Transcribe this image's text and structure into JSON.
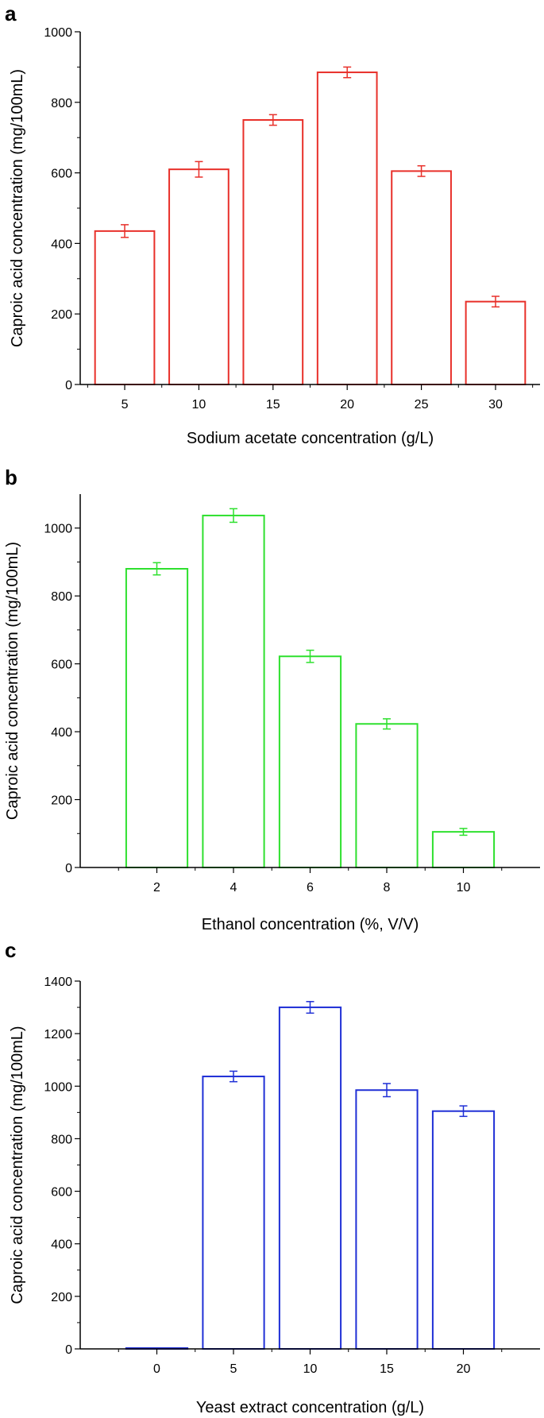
{
  "chart_data": [
    {
      "type": "bar",
      "panel_label": "a",
      "xlabel": "Sodium acetate concentration (g/L)",
      "ylabel": "Caproic acid concentration (mg/100mL)",
      "categories": [
        "5",
        "10",
        "15",
        "20",
        "25",
        "30"
      ],
      "values": [
        435,
        610,
        750,
        885,
        605,
        235
      ],
      "errors": [
        18,
        22,
        15,
        15,
        15,
        15
      ],
      "ylim": [
        0,
        1000
      ],
      "yticks": [
        0,
        200,
        400,
        600,
        800,
        1000
      ],
      "color": "#e8302a",
      "grid": false
    },
    {
      "type": "bar",
      "panel_label": "b",
      "xlabel": "Ethanol concentration (%, V/V)",
      "ylabel": "Caproic acid concentration (mg/100mL)",
      "categories": [
        "2",
        "4",
        "6",
        "8",
        "10"
      ],
      "values": [
        880,
        1037,
        622,
        423,
        105
      ],
      "errors": [
        18,
        20,
        18,
        15,
        10
      ],
      "ylim": [
        0,
        1100
      ],
      "yticks": [
        0,
        200,
        400,
        600,
        800,
        1000
      ],
      "color": "#2ee02e",
      "grid": false
    },
    {
      "type": "bar",
      "panel_label": "c",
      "xlabel": "Yeast extract concentration (g/L)",
      "ylabel": "Caproic acid concentration (mg/100mL)",
      "categories": [
        "0",
        "5",
        "10",
        "15",
        "20"
      ],
      "values": [
        3,
        1037,
        1300,
        985,
        905
      ],
      "errors": [
        0,
        20,
        22,
        25,
        20
      ],
      "ylim": [
        0,
        1400
      ],
      "yticks": [
        0,
        200,
        400,
        600,
        800,
        1000,
        1200,
        1400
      ],
      "color": "#1f2fd6",
      "grid": false
    }
  ]
}
